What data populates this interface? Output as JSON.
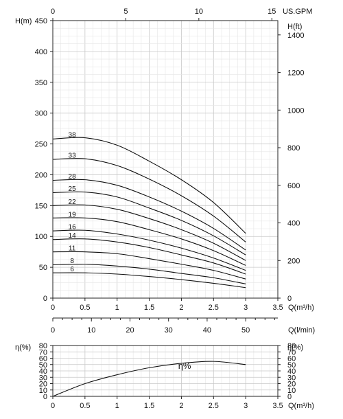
{
  "chart_data": [
    {
      "type": "line",
      "title": "",
      "xlabel": "Q(m³/h)",
      "ylabel": "H(m)",
      "xlim": [
        0,
        3.5
      ],
      "ylim": [
        0,
        450
      ],
      "x_ticks": [
        0,
        0.5,
        1,
        1.5,
        2,
        2.5,
        3,
        3.5
      ],
      "x_tick_labels": [
        "0",
        "0.5",
        "1",
        "1.5",
        "2",
        "2.5",
        "3",
        "3.5"
      ],
      "y_ticks": [
        0,
        50,
        100,
        150,
        200,
        250,
        300,
        350,
        400,
        450
      ],
      "secondary_x_top": {
        "label": "US.GPM",
        "range": [
          0,
          15.41
        ],
        "ticks": [
          0,
          5,
          10,
          15
        ]
      },
      "secondary_y_right": {
        "label": "H(ft)",
        "range": [
          0,
          1476
        ],
        "ticks": [
          0,
          200,
          400,
          600,
          800,
          1000,
          1200,
          1400
        ]
      },
      "grid": true,
      "series": [
        {
          "name": "38",
          "x": [
            0,
            0.5,
            1,
            1.5,
            2,
            2.5,
            3
          ],
          "y": [
            258,
            260,
            248,
            222,
            192,
            155,
            105
          ]
        },
        {
          "name": "33",
          "x": [
            0,
            0.5,
            1,
            1.5,
            2,
            2.5,
            3
          ],
          "y": [
            225,
            226,
            215,
            193,
            166,
            133,
            91
          ]
        },
        {
          "name": "28",
          "x": [
            0,
            0.5,
            1,
            1.5,
            2,
            2.5,
            3
          ],
          "y": [
            191,
            192,
            183,
            164,
            141,
            113,
            78
          ]
        },
        {
          "name": "25",
          "x": [
            0,
            0.5,
            1,
            1.5,
            2,
            2.5,
            3
          ],
          "y": [
            171,
            172,
            164,
            146,
            126,
            101,
            70
          ]
        },
        {
          "name": "22",
          "x": [
            0,
            0.5,
            1,
            1.5,
            2,
            2.5,
            3
          ],
          "y": [
            150,
            151,
            144,
            129,
            111,
            89,
            61
          ]
        },
        {
          "name": "19",
          "x": [
            0,
            0.5,
            1,
            1.5,
            2,
            2.5,
            3
          ],
          "y": [
            130,
            130,
            124,
            111,
            96,
            77,
            53
          ]
        },
        {
          "name": "16",
          "x": [
            0,
            0.5,
            1,
            1.5,
            2,
            2.5,
            3
          ],
          "y": [
            109,
            110,
            104,
            94,
            81,
            65,
            45
          ]
        },
        {
          "name": "14",
          "x": [
            0,
            0.5,
            1,
            1.5,
            2,
            2.5,
            3
          ],
          "y": [
            95,
            96,
            91,
            82,
            70,
            57,
            39
          ]
        },
        {
          "name": "11",
          "x": [
            0,
            0.5,
            1,
            1.5,
            2,
            2.5,
            3
          ],
          "y": [
            75,
            75,
            72,
            64,
            55,
            45,
            31
          ]
        },
        {
          "name": "8",
          "x": [
            0,
            0.5,
            1,
            1.5,
            2,
            2.5,
            3
          ],
          "y": [
            54,
            55,
            52,
            47,
            40,
            33,
            23
          ]
        },
        {
          "name": "6",
          "x": [
            0,
            0.5,
            1,
            1.5,
            2,
            2.5,
            3
          ],
          "y": [
            41,
            41,
            39,
            35,
            30,
            24,
            17
          ]
        }
      ]
    },
    {
      "type": "line",
      "title": "",
      "xlabel": "Q(l/min)",
      "xlim": [
        0,
        58.33
      ],
      "x_ticks": [
        0,
        10,
        20,
        30,
        40,
        50
      ],
      "grid": false,
      "series": []
    },
    {
      "type": "line",
      "title": "",
      "xlabel": "Q(m³/h)",
      "ylabel": "η(%)",
      "ylabel_right": "η(%)",
      "xlim": [
        0,
        3.5
      ],
      "ylim": [
        0,
        80
      ],
      "x_ticks": [
        0,
        0.5,
        1,
        1.5,
        2,
        2.5,
        3,
        3.5
      ],
      "x_tick_labels": [
        "0",
        "0.5",
        "1",
        "1.5",
        "2",
        "2.5",
        "3",
        "3.5"
      ],
      "y_ticks": [
        0,
        10,
        20,
        30,
        40,
        50,
        60,
        70,
        80
      ],
      "grid": true,
      "series": [
        {
          "name": "η%",
          "x": [
            0,
            0.5,
            1,
            1.5,
            2,
            2.5,
            3
          ],
          "y": [
            0,
            20,
            34,
            45,
            52,
            55,
            50
          ]
        }
      ]
    }
  ]
}
